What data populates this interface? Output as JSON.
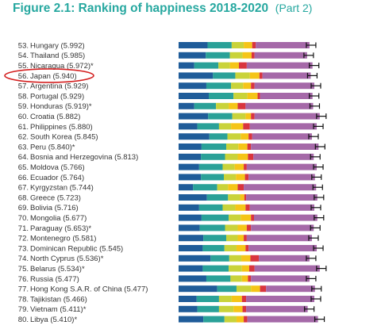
{
  "header": {
    "title": "Figure 2.1: Ranking of happiness 2018-2020",
    "part": "(Part 2)"
  },
  "colors": {
    "title": "#27a8a0",
    "highlight_circle": "#d42020",
    "segments": [
      "#1f5c99",
      "#2aa198",
      "#c9d33a",
      "#f5c518",
      "#d9353e",
      "#a569a8"
    ]
  },
  "chart_data": {
    "type": "bar",
    "stacked": true,
    "orientation": "horizontal",
    "highlighted_category": "Japan",
    "segment_count": 6,
    "error_bars": true,
    "rows": [
      {
        "rank": "53.",
        "label": "Hungary (5.992)",
        "score": 5.992,
        "segments": [
          0.96,
          0.8,
          0.4,
          0.28,
          0.12,
          1.78
        ]
      },
      {
        "rank": "54.",
        "label": "Thailand (5.985)",
        "score": 5.985,
        "segments": [
          0.9,
          0.8,
          0.42,
          0.3,
          0.1,
          1.74
        ]
      },
      {
        "rank": "55.",
        "label": "Nicaragua (5.972)*",
        "score": 5.972,
        "segments": [
          0.52,
          0.8,
          0.38,
          0.3,
          0.26,
          2.18
        ]
      },
      {
        "rank": "56.",
        "label": "Japan (5.940)",
        "score": 5.94,
        "segments": [
          1.14,
          0.74,
          0.48,
          0.32,
          0.1,
          1.6
        ]
      },
      {
        "rank": "57.",
        "label": "Argentina (5.929)",
        "score": 5.929,
        "segments": [
          0.92,
          0.82,
          0.4,
          0.26,
          0.12,
          1.98
        ]
      },
      {
        "rank": "58.",
        "label": "Portugal (5.929)",
        "score": 5.929,
        "segments": [
          1.0,
          0.82,
          0.46,
          0.34,
          0.08,
          1.74
        ]
      },
      {
        "rank": "59.",
        "label": "Honduras (5.919)*",
        "score": 5.919,
        "segments": [
          0.52,
          0.72,
          0.42,
          0.3,
          0.26,
          2.24
        ]
      },
      {
        "rank": "60.",
        "label": "Croatia (5.882)",
        "score": 5.882,
        "segments": [
          0.98,
          0.8,
          0.44,
          0.18,
          0.12,
          2.16
        ]
      },
      {
        "rank": "61.",
        "label": "Philippines (5.880)",
        "score": 5.88,
        "segments": [
          0.62,
          0.72,
          0.4,
          0.4,
          0.22,
          2.22
        ]
      },
      {
        "rank": "62.",
        "label": "South Korea (5.845)",
        "score": 5.845,
        "segments": [
          1.02,
          0.6,
          0.44,
          0.26,
          0.12,
          1.98
        ]
      },
      {
        "rank": "63.",
        "label": "Peru (5.840)*",
        "score": 5.84,
        "segments": [
          0.76,
          0.82,
          0.4,
          0.3,
          0.12,
          2.24
        ]
      },
      {
        "rank": "64.",
        "label": "Bosnia and Herzegovina (5.813)",
        "score": 5.813,
        "segments": [
          0.74,
          0.8,
          0.42,
          0.34,
          0.18,
          2.0
        ]
      },
      {
        "rank": "65.",
        "label": "Moldova (5.766)",
        "score": 5.766,
        "segments": [
          0.68,
          0.78,
          0.4,
          0.3,
          0.1,
          2.32
        ]
      },
      {
        "rank": "66.",
        "label": "Ecuador (5.764)",
        "score": 5.764,
        "segments": [
          0.74,
          0.76,
          0.4,
          0.3,
          0.12,
          2.2
        ]
      },
      {
        "rank": "67.",
        "label": "Kyrgyzstan (5.744)",
        "score": 5.744,
        "segments": [
          0.48,
          0.8,
          0.36,
          0.32,
          0.2,
          2.4
        ]
      },
      {
        "rank": "68.",
        "label": "Greece (5.723)",
        "score": 5.723,
        "segments": [
          0.94,
          0.7,
          0.4,
          0.14,
          0.06,
          2.36
        ]
      },
      {
        "rank": "69.",
        "label": "Bolivia (5.716)",
        "score": 5.716,
        "segments": [
          0.68,
          0.78,
          0.42,
          0.34,
          0.14,
          2.14
        ]
      },
      {
        "rank": "70.",
        "label": "Mongolia (5.677)",
        "score": 5.677,
        "segments": [
          0.76,
          0.9,
          0.4,
          0.34,
          0.1,
          2.1
        ]
      },
      {
        "rank": "71.",
        "label": "Paraguay (5.653)*",
        "score": 5.653,
        "segments": [
          0.7,
          0.84,
          0.42,
          0.3,
          0.14,
          2.08
        ]
      },
      {
        "rank": "72.",
        "label": "Montenegro (5.581)",
        "score": 5.581,
        "segments": [
          0.82,
          0.76,
          0.38,
          0.2,
          0.1,
          2.16
        ]
      },
      {
        "rank": "73.",
        "label": "Dominican Republic (5.545)",
        "score": 5.545,
        "segments": [
          0.8,
          0.72,
          0.4,
          0.3,
          0.1,
          2.26
        ]
      },
      {
        "rank": "74.",
        "label": "North Cyprus (5.536)*",
        "score": 5.536,
        "segments": [
          1.06,
          0.62,
          0.4,
          0.3,
          0.28,
          1.68
        ]
      },
      {
        "rank": "75.",
        "label": "Belarus (5.534)*",
        "score": 5.534,
        "segments": [
          0.8,
          0.86,
          0.44,
          0.24,
          0.18,
          2.16
        ]
      },
      {
        "rank": "76.",
        "label": "Russia (5.477)",
        "score": 5.477,
        "segments": [
          0.92,
          0.8,
          0.38,
          0.2,
          0.1,
          1.94
        ]
      },
      {
        "rank": "77.",
        "label": "Hong Kong S.A.R. of China (5.477)",
        "score": 5.477,
        "segments": [
          1.28,
          0.64,
          0.48,
          0.3,
          0.2,
          1.62
        ]
      },
      {
        "rank": "78.",
        "label": "Tajikistan (5.466)",
        "score": 5.466,
        "segments": [
          0.6,
          0.74,
          0.42,
          0.34,
          0.14,
          2.26
        ]
      },
      {
        "rank": "79.",
        "label": "Vietnam (5.411)*",
        "score": 5.411,
        "segments": [
          0.62,
          0.72,
          0.48,
          0.3,
          0.12,
          2.04
        ]
      },
      {
        "rank": "80.",
        "label": "Libya (5.410)*",
        "score": 5.41,
        "segments": [
          0.82,
          0.7,
          0.4,
          0.24,
          0.12,
          2.34
        ]
      }
    ]
  }
}
